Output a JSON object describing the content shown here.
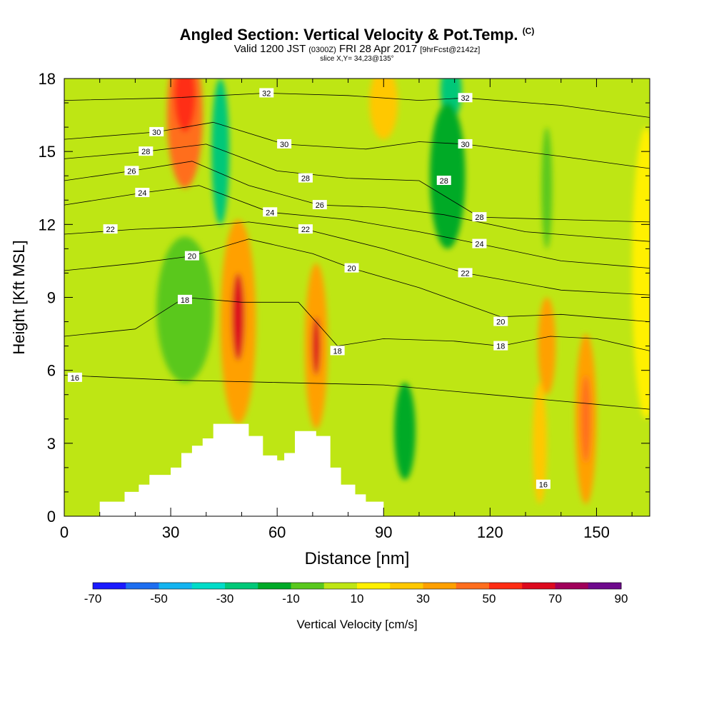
{
  "title": {
    "main": "Angled Section: Vertical Velocity & Pot.Temp.",
    "tag": "(C)",
    "valid_prefix": "Valid 1200 JST",
    "valid_utc": "(0300Z)",
    "valid_date": "FRI 28 Apr 2017",
    "forecast": "[9hrFcst@2142z]",
    "slice": "slice X,Y= 34,23@135°"
  },
  "chart_data": {
    "type": "heatmap",
    "xlabel": "Distance [nm]",
    "ylabel": "Height [Kft MSL]",
    "xlim": [
      0,
      165
    ],
    "ylim": [
      0,
      18
    ],
    "x_ticks": [
      0,
      30,
      60,
      90,
      120,
      150
    ],
    "y_ticks": [
      0,
      3,
      6,
      9,
      12,
      15,
      18
    ],
    "colorbar": {
      "label": "Vertical Velocity [cm/s]",
      "levels": [
        -70,
        -60,
        -50,
        -40,
        -30,
        -20,
        -10,
        0,
        10,
        20,
        30,
        40,
        50,
        60,
        70,
        80,
        90
      ],
      "tick_labels": [
        "-70",
        "-50",
        "-30",
        "-10",
        "10",
        "30",
        "50",
        "70",
        "90"
      ],
      "colors": [
        "#1a1aff",
        "#1e6ef0",
        "#14b4f0",
        "#00dcc8",
        "#00c878",
        "#00aa28",
        "#5ac81e",
        "#bee614",
        "#fff000",
        "#ffc800",
        "#ffa000",
        "#ff6e1e",
        "#ff2d14",
        "#dc0a1e",
        "#a0005a",
        "#6e0a8c"
      ]
    },
    "velocity_cells": [
      {
        "x": 34,
        "y": 16.5,
        "rx": 5,
        "ry": 3,
        "value": 40
      },
      {
        "x": 34,
        "y": 17.3,
        "rx": 3,
        "ry": 1.5,
        "value": 50
      },
      {
        "x": 49,
        "y": 8,
        "rx": 5,
        "ry": 4.2,
        "value": 30
      },
      {
        "x": 49,
        "y": 8.2,
        "rx": 1.8,
        "ry": 1.8,
        "value": 60
      },
      {
        "x": 71,
        "y": 7,
        "rx": 3.2,
        "ry": 3.4,
        "value": 30
      },
      {
        "x": 71,
        "y": 7,
        "rx": 1.2,
        "ry": 1.2,
        "value": 60
      },
      {
        "x": 90,
        "y": 17,
        "rx": 4,
        "ry": 1.5,
        "value": 20
      },
      {
        "x": 109,
        "y": 17.5,
        "rx": 3,
        "ry": 1.2,
        "value": -30
      },
      {
        "x": 108,
        "y": 14,
        "rx": 5,
        "ry": 3,
        "value": -20
      },
      {
        "x": 44,
        "y": 15,
        "rx": 2.5,
        "ry": 3,
        "value": -30
      },
      {
        "x": 34,
        "y": 8.5,
        "rx": 8,
        "ry": 3,
        "value": -10
      },
      {
        "x": 96,
        "y": 3.5,
        "rx": 3,
        "ry": 2,
        "value": -20
      },
      {
        "x": 136,
        "y": 7,
        "rx": 2.5,
        "ry": 2,
        "value": 30
      },
      {
        "x": 147,
        "y": 4,
        "rx": 3,
        "ry": 3.5,
        "value": 30
      },
      {
        "x": 147,
        "y": 4,
        "rx": 1.4,
        "ry": 1.8,
        "value": 40
      },
      {
        "x": 134,
        "y": 3,
        "rx": 2,
        "ry": 2.5,
        "value": 20
      },
      {
        "x": 136,
        "y": 13.5,
        "rx": 1.5,
        "ry": 2.5,
        "value": -10
      },
      {
        "x": 164,
        "y": 10,
        "rx": 4,
        "ry": 6,
        "value": 10
      }
    ],
    "terrain": [
      [
        10,
        0.6
      ],
      [
        17,
        1
      ],
      [
        21,
        1.3
      ],
      [
        24,
        1.7
      ],
      [
        30,
        2
      ],
      [
        33,
        2.6
      ],
      [
        36,
        2.9
      ],
      [
        39,
        3.2
      ],
      [
        42,
        3.8
      ],
      [
        52,
        3.3
      ],
      [
        56,
        2.5
      ],
      [
        60,
        2.3
      ],
      [
        62,
        2.6
      ],
      [
        65,
        3.5
      ],
      [
        71,
        3.3
      ],
      [
        75,
        2
      ],
      [
        78,
        1.3
      ],
      [
        82,
        0.9
      ],
      [
        85,
        0.6
      ],
      [
        90,
        0
      ]
    ],
    "isotherm_labels": [
      {
        "text": "32",
        "x": 57,
        "y": 17.4
      },
      {
        "text": "30",
        "x": 26,
        "y": 15.8
      },
      {
        "text": "28",
        "x": 23,
        "y": 15
      },
      {
        "text": "26",
        "x": 19,
        "y": 14.2
      },
      {
        "text": "24",
        "x": 22,
        "y": 13.3
      },
      {
        "text": "22",
        "x": 13,
        "y": 11.8
      },
      {
        "text": "30",
        "x": 62,
        "y": 15.3
      },
      {
        "text": "28",
        "x": 68,
        "y": 13.9
      },
      {
        "text": "26",
        "x": 72,
        "y": 12.8
      },
      {
        "text": "24",
        "x": 58,
        "y": 12.5
      },
      {
        "text": "22",
        "x": 68,
        "y": 11.8
      },
      {
        "text": "20",
        "x": 36,
        "y": 10.7
      },
      {
        "text": "18",
        "x": 34,
        "y": 8.9
      },
      {
        "text": "20",
        "x": 81,
        "y": 10.2
      },
      {
        "text": "18",
        "x": 77,
        "y": 6.8
      },
      {
        "text": "16",
        "x": 3,
        "y": 5.7
      },
      {
        "text": "32",
        "x": 113,
        "y": 17.2
      },
      {
        "text": "30",
        "x": 113,
        "y": 15.3
      },
      {
        "text": "28",
        "x": 107,
        "y": 13.8
      },
      {
        "text": "28",
        "x": 117,
        "y": 12.3
      },
      {
        "text": "24",
        "x": 117,
        "y": 11.2
      },
      {
        "text": "22",
        "x": 113,
        "y": 10
      },
      {
        "text": "20",
        "x": 123,
        "y": 8
      },
      {
        "text": "18",
        "x": 123,
        "y": 7
      },
      {
        "text": "16",
        "x": 135,
        "y": 1.3
      }
    ],
    "isotherm_lines": [
      {
        "level": 16,
        "points": [
          [
            0,
            5.8
          ],
          [
            30,
            5.6
          ],
          [
            60,
            5.5
          ],
          [
            90,
            5.4
          ],
          [
            120,
            5
          ],
          [
            150,
            4.6
          ],
          [
            165,
            4.4
          ]
        ]
      },
      {
        "level": 18,
        "points": [
          [
            0,
            7.4
          ],
          [
            20,
            7.7
          ],
          [
            34,
            9
          ],
          [
            50,
            8.8
          ],
          [
            66,
            8.8
          ],
          [
            77,
            7
          ],
          [
            90,
            7.3
          ],
          [
            110,
            7.2
          ],
          [
            123,
            7
          ],
          [
            137,
            7.4
          ],
          [
            150,
            7.3
          ],
          [
            165,
            6.8
          ]
        ]
      },
      {
        "level": 20,
        "points": [
          [
            0,
            10.1
          ],
          [
            20,
            10.4
          ],
          [
            36,
            10.7
          ],
          [
            52,
            11.4
          ],
          [
            70,
            10.8
          ],
          [
            81,
            10.2
          ],
          [
            100,
            9.4
          ],
          [
            123,
            8.2
          ],
          [
            140,
            8.3
          ],
          [
            165,
            8
          ]
        ]
      },
      {
        "level": 22,
        "points": [
          [
            0,
            11.6
          ],
          [
            20,
            11.8
          ],
          [
            36,
            11.9
          ],
          [
            52,
            12.1
          ],
          [
            68,
            11.8
          ],
          [
            90,
            11
          ],
          [
            113,
            10
          ],
          [
            140,
            9.3
          ],
          [
            165,
            9.1
          ]
        ]
      },
      {
        "level": 24,
        "points": [
          [
            0,
            12.8
          ],
          [
            22,
            13.3
          ],
          [
            38,
            13.6
          ],
          [
            58,
            12.5
          ],
          [
            80,
            12.2
          ],
          [
            100,
            11.7
          ],
          [
            117,
            11.2
          ],
          [
            140,
            10.5
          ],
          [
            165,
            10.2
          ]
        ]
      },
      {
        "level": 26,
        "points": [
          [
            0,
            13.8
          ],
          [
            19,
            14.2
          ],
          [
            36,
            14.6
          ],
          [
            52,
            13.6
          ],
          [
            72,
            12.8
          ],
          [
            90,
            12.7
          ],
          [
            107,
            12.4
          ],
          [
            130,
            11.7
          ],
          [
            165,
            11.3
          ]
        ]
      },
      {
        "level": 28,
        "points": [
          [
            0,
            14.7
          ],
          [
            23,
            15
          ],
          [
            40,
            15.3
          ],
          [
            60,
            14.2
          ],
          [
            80,
            13.9
          ],
          [
            100,
            13.8
          ],
          [
            117,
            12.3
          ],
          [
            140,
            12.2
          ],
          [
            165,
            12.1
          ]
        ]
      },
      {
        "level": 30,
        "points": [
          [
            0,
            15.5
          ],
          [
            26,
            15.8
          ],
          [
            42,
            16.2
          ],
          [
            62,
            15.3
          ],
          [
            85,
            15.1
          ],
          [
            100,
            15.4
          ],
          [
            113,
            15.3
          ],
          [
            140,
            14.8
          ],
          [
            165,
            14.3
          ]
        ]
      },
      {
        "level": 32,
        "points": [
          [
            0,
            17.1
          ],
          [
            30,
            17.2
          ],
          [
            57,
            17.4
          ],
          [
            80,
            17.3
          ],
          [
            100,
            17.1
          ],
          [
            113,
            17.2
          ],
          [
            140,
            16.9
          ],
          [
            165,
            16.4
          ]
        ]
      }
    ]
  }
}
